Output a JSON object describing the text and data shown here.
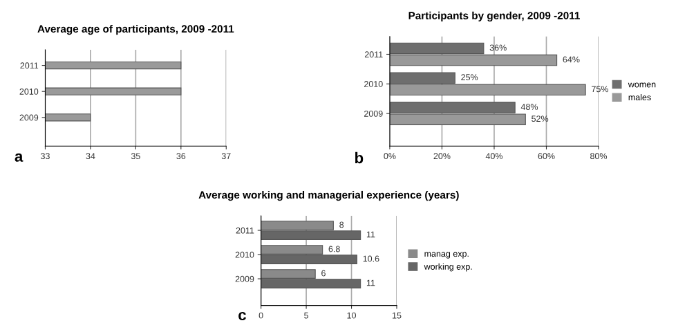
{
  "chart_data": [
    {
      "type": "bar",
      "orientation": "horizontal",
      "title": "Average age of participants, 2009 -2011",
      "categories": [
        "2011",
        "2010",
        "2009"
      ],
      "values": [
        36,
        36,
        34
      ],
      "color": "#9a9a9a",
      "xlim": [
        33,
        37
      ],
      "xticks": [
        33,
        34,
        35,
        36,
        37
      ],
      "grid": "x",
      "legend": false,
      "annotations": [
        "a"
      ]
    },
    {
      "type": "bar",
      "orientation": "horizontal",
      "title": "Participants by gender, 2009 -2011",
      "categories": [
        "2011",
        "2010",
        "2009"
      ],
      "series": [
        {
          "name": "women",
          "color": "#6e6e6e",
          "values": [
            36,
            25,
            48
          ],
          "value_labels": [
            "36%",
            "25%",
            "48%"
          ]
        },
        {
          "name": "males",
          "color": "#999999",
          "values": [
            64,
            75,
            52
          ],
          "value_labels": [
            "64%",
            "75%",
            "52%"
          ]
        }
      ],
      "xlim": [
        0,
        80
      ],
      "xticks": [
        {
          "value": 0,
          "label": "0%"
        },
        {
          "value": 20,
          "label": "20%"
        },
        {
          "value": 40,
          "label": "40%"
        },
        {
          "value": 60,
          "label": "60%"
        },
        {
          "value": 80,
          "label": "80%"
        }
      ],
      "grid": "x",
      "legend": "right",
      "annotations": [
        "b"
      ]
    },
    {
      "type": "bar",
      "orientation": "horizontal",
      "title": "Average working and managerial experience (years)",
      "categories": [
        "2011",
        "2010",
        "2009"
      ],
      "series": [
        {
          "name": "manag exp.",
          "color": "#8a8a8a",
          "values": [
            8,
            6.8,
            6
          ]
        },
        {
          "name": "working exp.",
          "color": "#666666",
          "values": [
            11,
            10.6,
            11
          ]
        }
      ],
      "xlim": [
        0,
        15
      ],
      "xticks": [
        0,
        5,
        10,
        15
      ],
      "grid": "x",
      "legend": "right",
      "data_labels": true,
      "annotations": [
        "c"
      ]
    }
  ]
}
